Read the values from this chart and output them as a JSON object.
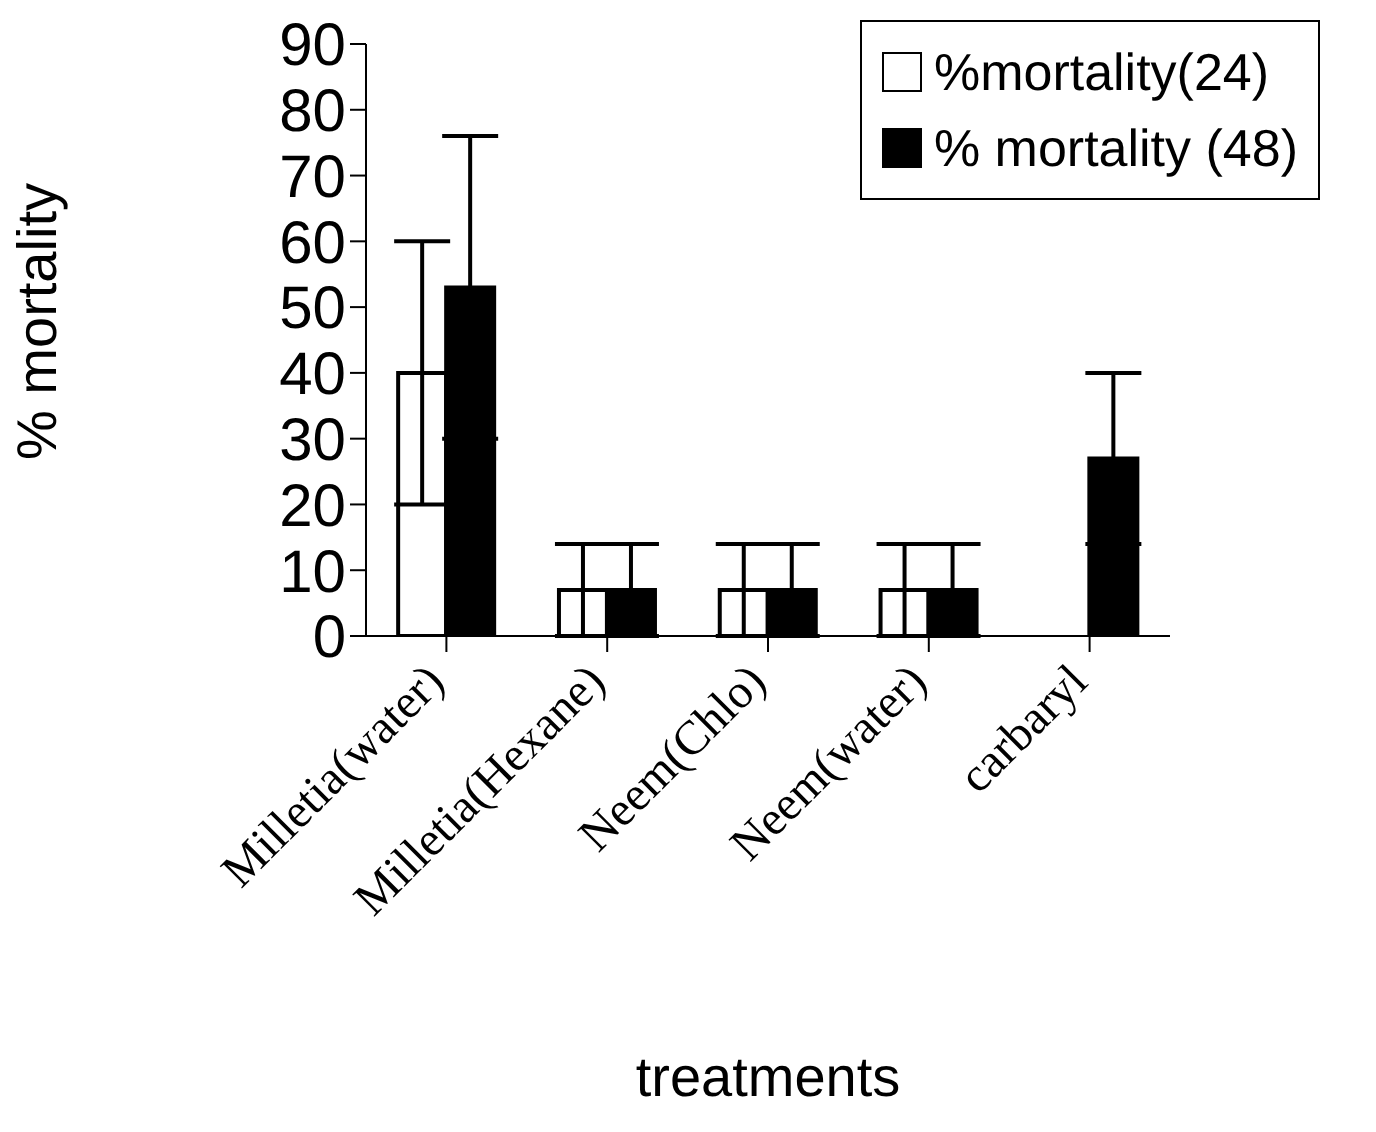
{
  "chart_data": {
    "type": "bar",
    "xlabel": "treatments",
    "ylabel": "% mortality",
    "categories": [
      "Milletia(water)",
      "Milletia(Hexane)",
      "Neem(Chlo)",
      "Neem(water)",
      "carbaryl"
    ],
    "series": [
      {
        "name": "%mortality(24)",
        "color": "#ffffff",
        "values": [
          40,
          7,
          7,
          7,
          0
        ],
        "errors": [
          20,
          7,
          7,
          7,
          null
        ]
      },
      {
        "name": "% mortality (48)",
        "color": "#000000",
        "values": [
          53,
          7,
          7,
          7,
          27
        ],
        "errors": [
          23,
          7,
          7,
          7,
          13
        ]
      }
    ],
    "ylim": [
      0,
      90
    ],
    "yticks": [
      0,
      10,
      20,
      30,
      40,
      50,
      60,
      70,
      80,
      90
    ],
    "grid": false,
    "legend": "top right"
  }
}
